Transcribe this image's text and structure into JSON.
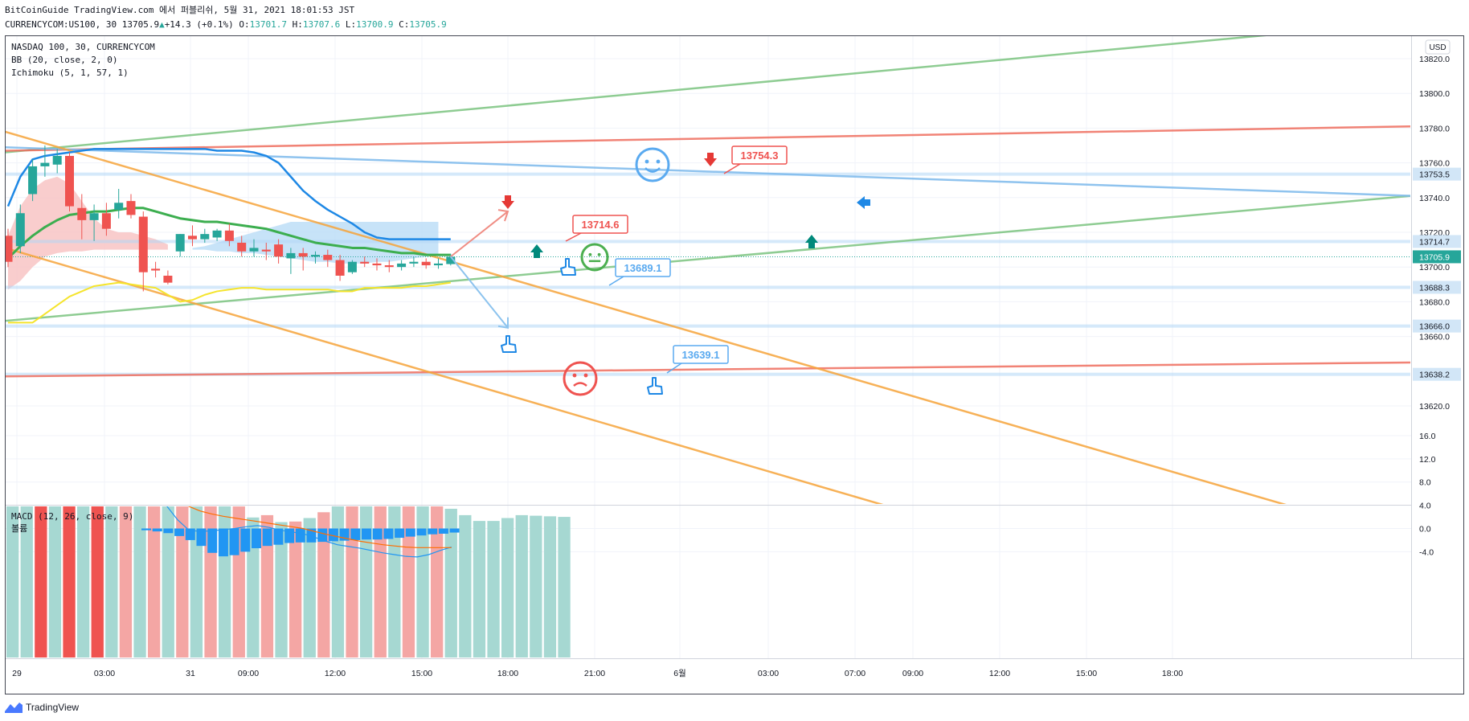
{
  "header": {
    "line1": "BitCoinGuide TradingView.com 에서 퍼블리쉬, 5월 31, 2021 18:01:53 JST",
    "symbol": "CURRENCYCOM:US100, 30",
    "last": "13705.9",
    "change": "+14.3 (+0.1%)",
    "o_label": "O:",
    "o_val": "13701.7",
    "h_label": "H:",
    "h_val": "13707.6",
    "l_label": "L:",
    "l_val": "13700.9",
    "c_label": "C:",
    "c_val": "13705.9"
  },
  "legend": {
    "title": "NASDAQ 100, 30, CURRENCYCOM",
    "bb": "BB (20, close, 2, 0)",
    "ichimoku": "Ichimoku (5, 1, 57, 1)",
    "macd": "MACD (12, 26, close, 9)",
    "macd_sub": "볼륨"
  },
  "currency_badge": "USD",
  "footer": {
    "brand": "TradingView"
  },
  "colors": {
    "up": "#26a69a",
    "down": "#ef5350",
    "cloud": "#f8c4c4",
    "cloud_blue": "#b9dcf6",
    "bb_basis": "#3cae4f",
    "bb_upper": "#1e88e5",
    "yellow": "#f5e42c",
    "orange": "#f6a43a",
    "green_line": "#7bc47f",
    "red_line": "#ef6e5f",
    "blue_line": "#7cb9ec"
  },
  "chart_data": [
    {
      "type": "candlestick",
      "title": "NASDAQ 100, 30, CURRENCYCOM",
      "ylim": [
        13602,
        13842
      ],
      "y_ticks": [
        13820,
        13800,
        13780,
        13760,
        13740,
        13720,
        13700,
        13680,
        13660,
        13620
      ],
      "x_ticks": [
        "29",
        "03:00",
        "31",
        "09:00",
        "12:00",
        "15:00",
        "18:00",
        "21:00",
        "6월",
        "03:00",
        "07:00",
        "09:00",
        "12:00",
        "15:00",
        "18:00"
      ],
      "candles": [
        {
          "o": 13718,
          "h": 13722,
          "l": 13700,
          "c": 13703
        },
        {
          "o": 13712,
          "h": 13736,
          "l": 13708,
          "c": 13731
        },
        {
          "o": 13742,
          "h": 13762,
          "l": 13738,
          "c": 13758
        },
        {
          "o": 13758,
          "h": 13770,
          "l": 13752,
          "c": 13760
        },
        {
          "o": 13759,
          "h": 13768,
          "l": 13754,
          "c": 13764
        },
        {
          "o": 13764,
          "h": 13766,
          "l": 13732,
          "c": 13735
        },
        {
          "o": 13734,
          "h": 13742,
          "l": 13716,
          "c": 13727
        },
        {
          "o": 13727,
          "h": 13736,
          "l": 13715,
          "c": 13731
        },
        {
          "o": 13731,
          "h": 13737,
          "l": 13718,
          "c": 13722
        },
        {
          "o": 13733,
          "h": 13745,
          "l": 13728,
          "c": 13737
        },
        {
          "o": 13738,
          "h": 13742,
          "l": 13728,
          "c": 13730
        },
        {
          "o": 13729,
          "h": 13732,
          "l": 13686,
          "c": 13697
        },
        {
          "o": 13699,
          "h": 13703,
          "l": 13694,
          "c": 13698
        },
        {
          "o": 13695,
          "h": 13698,
          "l": 13690,
          "c": 13691
        },
        {
          "o": 13709,
          "h": 13719,
          "l": 13706,
          "c": 13719
        },
        {
          "o": 13718,
          "h": 13724,
          "l": 13712,
          "c": 13716
        },
        {
          "o": 13716,
          "h": 13722,
          "l": 13714,
          "c": 13719
        },
        {
          "o": 13717,
          "h": 13722,
          "l": 13715,
          "c": 13721
        },
        {
          "o": 13721,
          "h": 13725,
          "l": 13712,
          "c": 13715
        },
        {
          "o": 13714,
          "h": 13718,
          "l": 13706,
          "c": 13709
        },
        {
          "o": 13709,
          "h": 13716,
          "l": 13706,
          "c": 13711
        },
        {
          "o": 13710,
          "h": 13714,
          "l": 13704,
          "c": 13709
        },
        {
          "o": 13713,
          "h": 13716,
          "l": 13702,
          "c": 13706
        },
        {
          "o": 13705,
          "h": 13711,
          "l": 13696,
          "c": 13708
        },
        {
          "o": 13708,
          "h": 13711,
          "l": 13698,
          "c": 13706
        },
        {
          "o": 13706,
          "h": 13709,
          "l": 13702,
          "c": 13707
        },
        {
          "o": 13707,
          "h": 13710,
          "l": 13700,
          "c": 13704
        },
        {
          "o": 13704,
          "h": 13707,
          "l": 13692,
          "c": 13695
        },
        {
          "o": 13697,
          "h": 13704,
          "l": 13696,
          "c": 13703
        },
        {
          "o": 13703,
          "h": 13706,
          "l": 13700,
          "c": 13702
        },
        {
          "o": 13702,
          "h": 13705,
          "l": 13698,
          "c": 13701
        },
        {
          "o": 13701,
          "h": 13704,
          "l": 13697,
          "c": 13700
        },
        {
          "o": 13700,
          "h": 13704,
          "l": 13698,
          "c": 13702
        },
        {
          "o": 13702,
          "h": 13706,
          "l": 13700,
          "c": 13703
        },
        {
          "o": 13703,
          "h": 13705,
          "l": 13699,
          "c": 13701
        },
        {
          "o": 13701,
          "h": 13705,
          "l": 13699,
          "c": 13702
        },
        {
          "o": 13701.7,
          "h": 13707.6,
          "l": 13700.9,
          "c": 13705.9
        }
      ],
      "bb_basis": [
        13705,
        13712,
        13718,
        13723,
        13727,
        13730,
        13731,
        13732,
        13732,
        13733,
        13734,
        13734,
        13732,
        13730,
        13728,
        13727,
        13726,
        13726,
        13725,
        13724,
        13723,
        13722,
        13720,
        13718,
        13716,
        13714,
        13713,
        13712,
        13711,
        13711,
        13710,
        13709,
        13708,
        13708,
        13707,
        13707,
        13707
      ],
      "bb_upper": [
        13735,
        13752,
        13762,
        13764,
        13765,
        13766,
        13767,
        13768,
        13768,
        13768,
        13768,
        13768,
        13768,
        13768,
        13768,
        13768,
        13768,
        13767,
        13767,
        13767,
        13766,
        13764,
        13760,
        13752,
        13744,
        13738,
        13733,
        13729,
        13725,
        13720,
        13717,
        13716,
        13716,
        13716,
        13716,
        13716,
        13716
      ],
      "yellow_line": [
        13668,
        13668,
        13668,
        13673,
        13678,
        13683,
        13686,
        13689,
        13690,
        13691,
        13690,
        13689,
        13688,
        13684,
        13680,
        13681,
        13684,
        13686,
        13687,
        13688,
        13688,
        13687,
        13687,
        13687,
        13687,
        13687,
        13687,
        13686,
        13686,
        13688,
        13688,
        13688,
        13688,
        13689,
        13689,
        13690,
        13691
      ],
      "horizontal_levels": [
        "13753.5",
        "13714.7",
        "13688.3",
        "13666.0",
        "13638.2"
      ],
      "last_price": "13705.9",
      "annotations": [
        "13754.3",
        "13714.6",
        "13689.1",
        "13639.1"
      ]
    },
    {
      "type": "bar+line",
      "title": "MACD (12, 26, close, 9)",
      "ylim": [
        -7,
        16
      ],
      "y_ticks": [
        16.0,
        12.0,
        8.0,
        4.0,
        0.0,
        -4.0
      ],
      "volume": [
        10.5,
        10.5,
        4.5,
        4.7,
        5.2,
        4.6,
        4,
        4.8,
        5,
        4,
        3.8,
        5,
        3.8,
        7.1,
        15,
        8.5,
        3.8,
        1.9,
        2.3,
        1.1,
        1.2,
        1.8,
        2.8,
        5.2,
        4,
        4,
        5,
        6.5,
        5.4,
        4.5,
        4.1,
        3.4,
        2.3,
        1.3,
        1.3,
        1.8,
        2.3,
        2.2,
        2.1,
        2.0
      ],
      "histogram": [
        -0.3,
        -0.5,
        -0.8,
        -1.3,
        -2.0,
        -3.0,
        -4.2,
        -4.8,
        -4.6,
        -4.0,
        -3.4,
        -3.0,
        -2.8,
        -2.5,
        -2.4,
        -2.4,
        -2.3,
        -2.2,
        -2.1,
        -2.0,
        -1.9,
        -1.9,
        -1.8,
        -1.6,
        -1.4,
        -1.2,
        -1.0,
        -0.9,
        -0.7
      ],
      "macd": [
        6,
        7.5,
        9.5,
        11,
        12.6,
        13.8,
        13.5,
        12,
        10.8,
        10.2,
        10,
        9.8,
        8.8,
        7,
        4,
        1.5,
        -0.3,
        -0.5,
        -0.4,
        -0.2,
        0,
        0.3,
        0.5,
        0.2,
        -0.3,
        -0.6,
        -0.9,
        -1.5,
        -2.2,
        -2.8,
        -3.1,
        -3.4,
        -3.8,
        -4.2,
        -4.5,
        -4.8,
        -4.9,
        -4.5,
        -3.8,
        -3.2
      ],
      "signal": [
        5.5,
        5.6,
        6,
        6.8,
        7.8,
        8.6,
        9.2,
        9.6,
        9.8,
        10,
        10,
        9.8,
        9.2,
        8,
        6.5,
        5,
        3.8,
        3,
        2.5,
        2.1,
        1.8,
        1.5,
        1.2,
        0.9,
        0.6,
        0.3,
        0,
        -0.5,
        -1.0,
        -1.4,
        -1.8,
        -2.2,
        -2.5,
        -2.8,
        -3.0,
        -3.2,
        -3.3,
        -3.3,
        -3.3,
        -3.3
      ]
    }
  ]
}
